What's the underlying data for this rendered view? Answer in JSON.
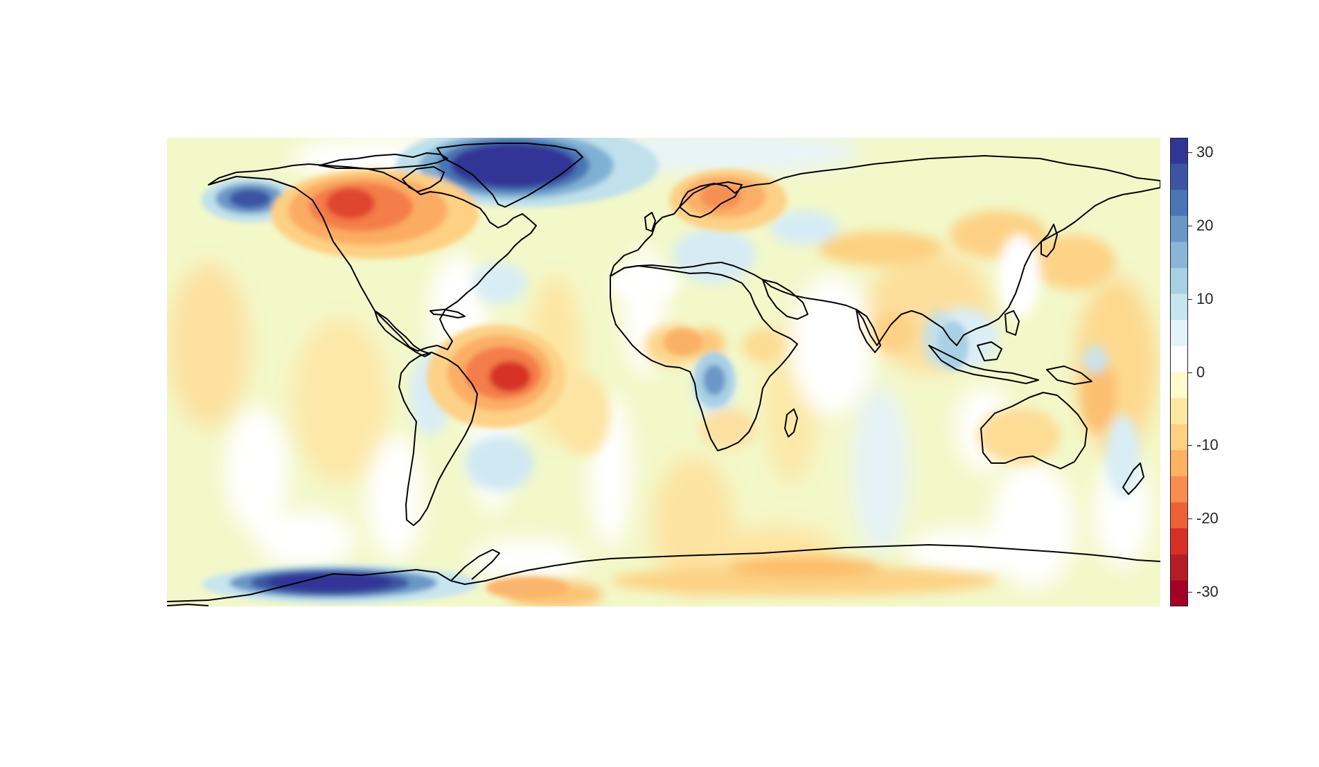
{
  "map": {
    "projection": "equirectangular",
    "coastlines": "black outlines",
    "field": "continuous anomaly field",
    "colormap": "diverging red-yellow-white-blue (reversed RdYlBu)",
    "background_color": "#f3f8c9",
    "features": [
      {
        "name": "greenland-maximum",
        "sign": "positive",
        "magnitude": "30"
      },
      {
        "name": "alaska-maximum",
        "sign": "positive",
        "magnitude": "20"
      },
      {
        "name": "west-antarctica-maximum",
        "sign": "positive",
        "magnitude": "30"
      },
      {
        "name": "hudson-bay-minimum",
        "sign": "negative",
        "magnitude": "-20"
      },
      {
        "name": "amazon-minimum",
        "sign": "negative",
        "magnitude": "-25"
      },
      {
        "name": "scandinavia-minimum",
        "sign": "negative",
        "magnitude": "-15"
      },
      {
        "name": "central-africa-maximum",
        "sign": "positive",
        "magnitude": "15"
      },
      {
        "name": "east-antarctica-minimum",
        "sign": "negative",
        "magnitude": "-10"
      }
    ]
  },
  "chart_data": {
    "type": "heatmap",
    "title": "",
    "colorbar": {
      "min": -32,
      "max": 32,
      "ticks": [
        30,
        20,
        10,
        0,
        -10,
        -20,
        -30
      ],
      "tick_labels": [
        "30",
        "20",
        "10",
        "0",
        "-10",
        "-20",
        "-30"
      ],
      "colors_top_to_bottom": [
        "#313695",
        "#3b55a3",
        "#4a74b4",
        "#6a97c6",
        "#8ab5d6",
        "#a8d0e4",
        "#c6e5ef",
        "#e4f3f8",
        "#ffffff",
        "#fffbcf",
        "#fee8a0",
        "#fdd082",
        "#fdb163",
        "#f88d52",
        "#ec6138",
        "#d73027",
        "#b51d28",
        "#a50026"
      ]
    }
  }
}
